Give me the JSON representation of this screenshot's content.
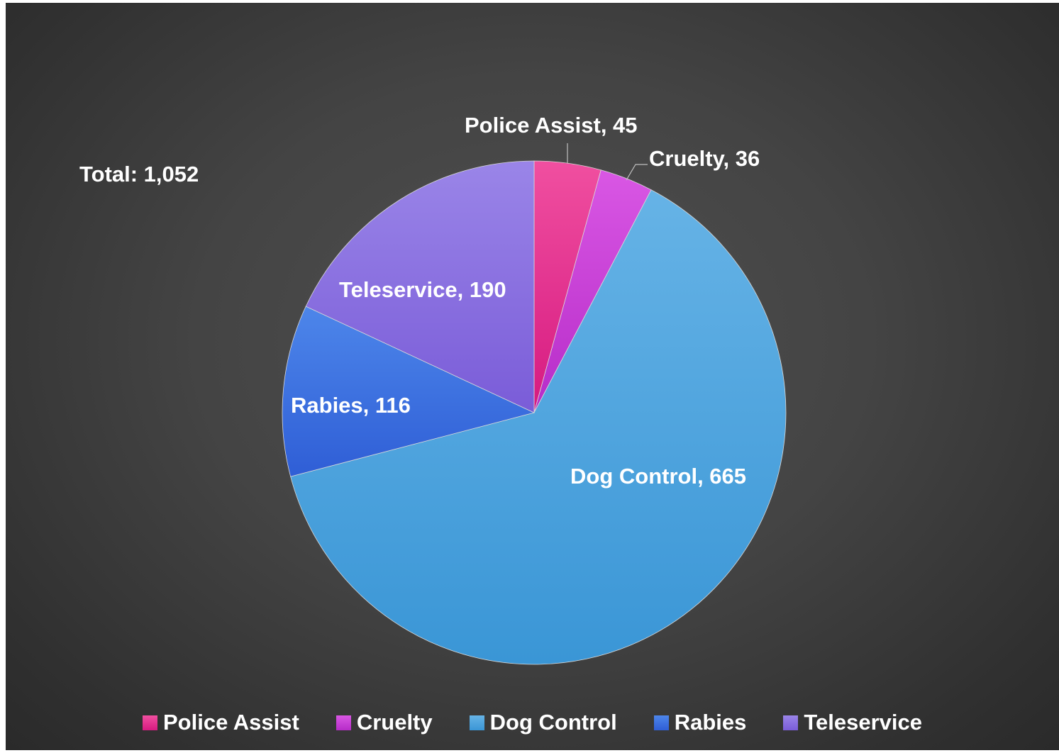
{
  "chart_data": {
    "type": "pie",
    "total_label": "Total: 1,052",
    "slices": [
      {
        "name": "Police Assist",
        "value": 45,
        "label": "Police Assist, 45",
        "color": "#e8288c",
        "color_light": "#f04fa0",
        "color_dark": "#d61a80"
      },
      {
        "name": "Cruelty",
        "value": 36,
        "label": "Cruelty, 36",
        "color": "#c93bd6",
        "color_light": "#d957e4",
        "color_dark": "#b62cc8"
      },
      {
        "name": "Dog Control",
        "value": 665,
        "label": "Dog Control, 665",
        "color": "#47a6e0",
        "color_light": "#66b3e6",
        "color_dark": "#3a96d6"
      },
      {
        "name": "Rabies",
        "value": 116,
        "label": "Rabies, 116",
        "color": "#3f72e3",
        "color_light": "#4d86ea",
        "color_dark": "#2f5ed6"
      },
      {
        "name": "Teleservice",
        "value": 190,
        "label": "Teleservice, 190",
        "color": "#8a6fe0",
        "color_light": "#9a85e8",
        "color_dark": "#7a5cd8"
      }
    ],
    "legend_placement": "bottom"
  }
}
